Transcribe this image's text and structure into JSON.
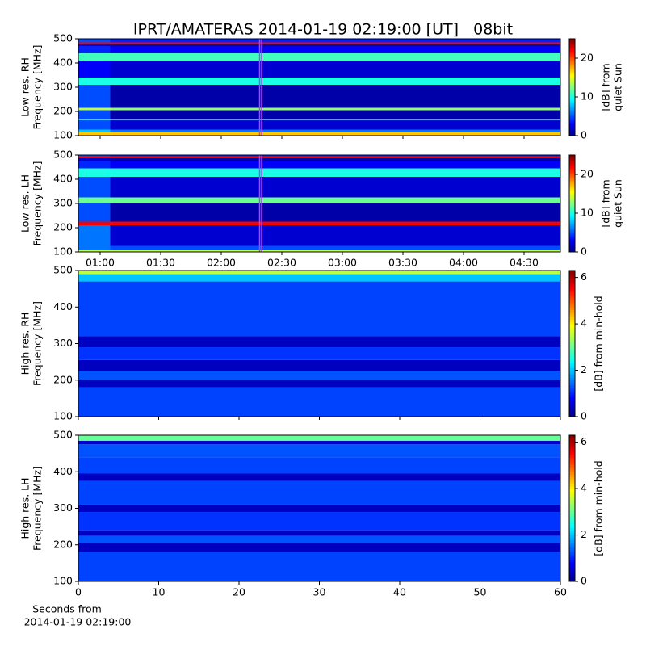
{
  "title": "IPRT/AMATERAS 2014-01-19 02:19:00 [UT]   08bit",
  "chart_data": [
    {
      "type": "heatmap",
      "ylabel": [
        "Low res. RH",
        "Frequency [MHz]"
      ],
      "clabel": [
        "[dB] from",
        "quiet Sun"
      ],
      "xlim": [
        49.2,
        288
      ],
      "xticks": [
        60,
        90,
        120,
        150,
        180,
        210,
        240,
        270
      ],
      "show_xticklabels": false,
      "ylim": [
        100,
        500
      ],
      "yticks": [
        100,
        200,
        300,
        400,
        500
      ],
      "clim": [
        0,
        25
      ],
      "cticks": [
        0,
        10,
        20
      ],
      "colormap": "jet",
      "markers": [
        139,
        140
      ],
      "marker_color": "#c03cff",
      "x_edges": [
        49.2,
        65,
        288
      ],
      "y_edges": [
        100,
        115,
        125,
        165,
        170,
        205,
        215,
        310,
        340,
        410,
        440,
        470,
        478,
        485,
        500
      ],
      "z": [
        [
          17,
          17
        ],
        [
          8,
          6
        ],
        [
          5,
          2
        ],
        [
          9,
          8
        ],
        [
          5,
          1
        ],
        [
          14,
          13
        ],
        [
          5,
          1
        ],
        [
          10,
          10
        ],
        [
          3,
          2
        ],
        [
          11,
          11
        ],
        [
          4,
          3
        ],
        [
          2,
          1
        ],
        [
          22,
          22
        ],
        [
          5,
          4
        ]
      ]
    },
    {
      "type": "heatmap",
      "ylabel": [
        "Low res. LH",
        "Frequency [MHz]"
      ],
      "clabel": [
        "[dB] from",
        "quiet Sun"
      ],
      "xlim": [
        49.2,
        288
      ],
      "xticks": [
        {
          "value": 60,
          "label": "01:00"
        },
        {
          "value": 90,
          "label": "01:30"
        },
        {
          "value": 120,
          "label": "02:00"
        },
        {
          "value": 150,
          "label": "02:30"
        },
        {
          "value": 180,
          "label": "03:00"
        },
        {
          "value": 210,
          "label": "03:30"
        },
        {
          "value": 240,
          "label": "04:00"
        },
        {
          "value": 270,
          "label": "04:30"
        }
      ],
      "ylim": [
        100,
        500
      ],
      "yticks": [
        100,
        200,
        300,
        400,
        500
      ],
      "clim": [
        0,
        25
      ],
      "cticks": [
        0,
        10,
        20
      ],
      "colormap": "jet",
      "markers": [
        139,
        140
      ],
      "marker_color": "#c03cff",
      "x_edges": [
        49.2,
        65,
        288
      ],
      "y_edges": [
        100,
        110,
        125,
        210,
        225,
        300,
        325,
        410,
        445,
        475,
        488,
        495,
        500
      ],
      "z": [
        [
          14,
          14
        ],
        [
          6,
          5
        ],
        [
          6,
          2
        ],
        [
          22,
          22
        ],
        [
          5,
          1
        ],
        [
          12,
          12
        ],
        [
          5,
          2
        ],
        [
          10,
          10
        ],
        [
          4,
          3
        ],
        [
          2,
          1
        ],
        [
          22,
          22
        ],
        [
          5,
          4
        ]
      ]
    },
    {
      "type": "heatmap",
      "ylabel": [
        "High res. RH",
        "Frequency [MHz]"
      ],
      "clabel": [
        "[dB] from min-hold"
      ],
      "xlim": [
        0,
        60
      ],
      "xticks": [
        0,
        10,
        20,
        30,
        40,
        50,
        60
      ],
      "show_xticklabels": false,
      "ylim": [
        100,
        500
      ],
      "yticks": [
        100,
        200,
        300,
        400,
        500
      ],
      "clim": [
        0,
        6.3
      ],
      "cticks": [
        0,
        2,
        4,
        6
      ],
      "colormap": "jet",
      "x_edges": [
        0,
        60
      ],
      "y_edges": [
        100,
        180,
        200,
        225,
        255,
        290,
        320,
        470,
        490,
        500
      ],
      "z": [
        [
          1.2
        ],
        [
          0.4
        ],
        [
          1.3
        ],
        [
          0.4
        ],
        [
          1.1
        ],
        [
          0.4
        ],
        [
          1.2
        ],
        [
          2.0
        ],
        [
          3.5
        ]
      ]
    },
    {
      "type": "heatmap",
      "ylabel": [
        "High res. LH",
        "Frequency [MHz]"
      ],
      "clabel": [
        "[dB] from min-hold"
      ],
      "xlabel": [
        "Seconds from",
        "2014-01-19 02:19:00"
      ],
      "xlim": [
        0,
        60
      ],
      "xticks": [
        0,
        10,
        20,
        30,
        40,
        50,
        60
      ],
      "ylim": [
        100,
        500
      ],
      "yticks": [
        100,
        200,
        300,
        400,
        500
      ],
      "clim": [
        0,
        6.3
      ],
      "cticks": [
        0,
        2,
        4,
        6
      ],
      "colormap": "jet",
      "x_edges": [
        0,
        60
      ],
      "y_edges": [
        100,
        180,
        205,
        225,
        240,
        290,
        310,
        375,
        395,
        440,
        475,
        485,
        500
      ],
      "z": [
        [
          1.2
        ],
        [
          0.4
        ],
        [
          1.3
        ],
        [
          0.4
        ],
        [
          1.1
        ],
        [
          0.4
        ],
        [
          1.2
        ],
        [
          0.4
        ],
        [
          1.2
        ],
        [
          1.3
        ],
        [
          0.5
        ],
        [
          3.0
        ]
      ]
    }
  ]
}
